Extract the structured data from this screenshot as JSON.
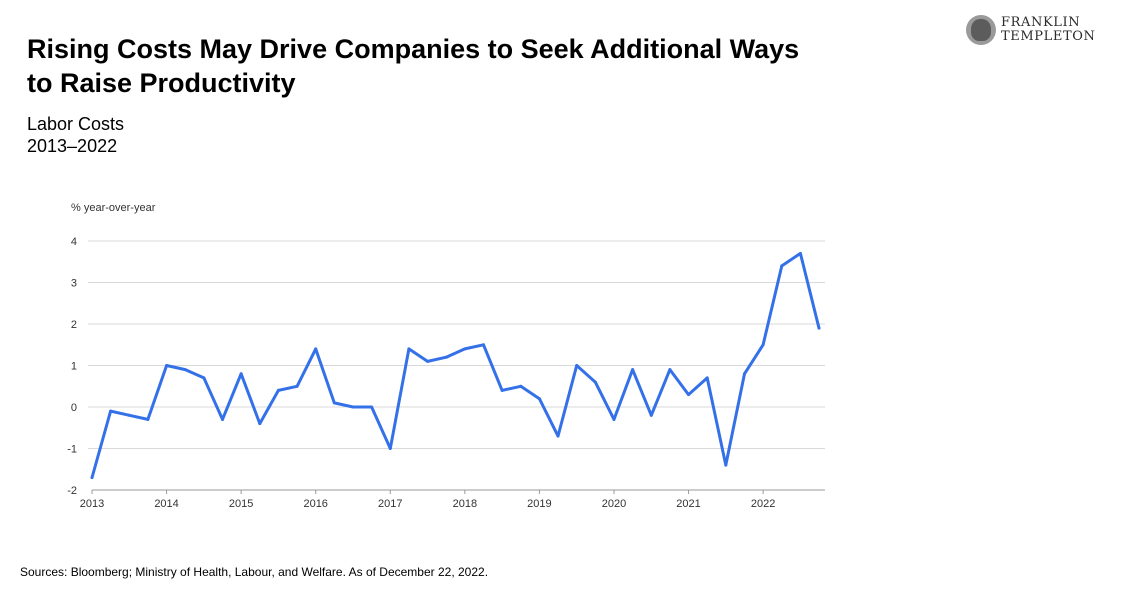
{
  "header": {
    "title": "Rising Costs May Drive Companies to Seek Additional Ways to Raise Productivity",
    "subtitle_line1": "Labor Costs",
    "subtitle_line2": "2013–2022"
  },
  "logo": {
    "line1": "FRANKLIN",
    "line2": "TEMPLETON",
    "icon": "portrait-seal-icon"
  },
  "footer": {
    "source": "Sources: Bloomberg; Ministry of Health, Labour, and Welfare. As of December 22, 2022."
  },
  "colors": {
    "line": "#3471E8",
    "grid": "#D9D9D9",
    "axis": "#999999"
  },
  "chart_data": {
    "type": "line",
    "title": "",
    "ylabel": "% year-over-year",
    "xlabel": "",
    "ylim": [
      -2,
      4
    ],
    "yticks": [
      4,
      3,
      2,
      1,
      0,
      -1,
      -2
    ],
    "xlim": [
      2013,
      2022.83
    ],
    "xticks": [
      "2013",
      "2014",
      "2015",
      "2016",
      "2017",
      "2018",
      "2019",
      "2020",
      "2021",
      "2022"
    ],
    "grid": true,
    "legend": "none",
    "series": [
      {
        "name": "",
        "x": [
          2013.0,
          2013.25,
          2013.5,
          2013.75,
          2014.0,
          2014.25,
          2014.5,
          2014.75,
          2015.0,
          2015.25,
          2015.5,
          2015.75,
          2016.0,
          2016.25,
          2016.5,
          2016.75,
          2017.0,
          2017.25,
          2017.5,
          2017.75,
          2018.0,
          2018.25,
          2018.5,
          2018.75,
          2019.0,
          2019.25,
          2019.5,
          2019.75,
          2020.0,
          2020.25,
          2020.5,
          2020.75,
          2021.0,
          2021.25,
          2021.5,
          2021.75,
          2022.0,
          2022.25,
          2022.5,
          2022.75
        ],
        "y": [
          -1.7,
          -0.1,
          -0.2,
          -0.3,
          1.0,
          0.9,
          0.7,
          -0.3,
          0.8,
          -0.4,
          0.4,
          0.5,
          1.4,
          0.1,
          0.0,
          0.0,
          -1.0,
          1.4,
          1.1,
          1.2,
          1.4,
          1.5,
          0.4,
          0.5,
          0.2,
          -0.7,
          1.0,
          0.6,
          -0.3,
          0.9,
          -0.2,
          0.9,
          0.3,
          0.7,
          -1.4,
          0.8,
          1.5,
          3.4,
          3.7,
          1.9
        ]
      }
    ]
  }
}
